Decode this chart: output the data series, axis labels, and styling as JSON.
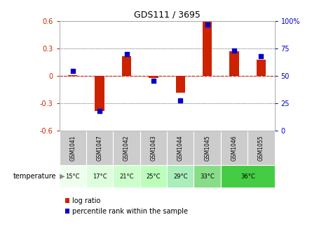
{
  "title": "GDS111 / 3695",
  "samples": [
    "GSM1041",
    "GSM1047",
    "GSM1042",
    "GSM1043",
    "GSM1044",
    "GSM1045",
    "GSM1046",
    "GSM1055"
  ],
  "temperatures": [
    "15°C",
    "17°C",
    "21°C",
    "25°C",
    "29°C",
    "33°C",
    "36°C"
  ],
  "temp_groups": [
    1,
    1,
    2,
    2,
    3,
    3,
    4
  ],
  "temp_spans": [
    1,
    1,
    1,
    1,
    1,
    1,
    2
  ],
  "temp_start_idx": [
    0,
    1,
    2,
    3,
    4,
    5,
    6
  ],
  "log_ratios": [
    0.01,
    -0.38,
    0.22,
    -0.02,
    -0.18,
    0.6,
    0.27,
    0.18
  ],
  "percentile_ranks": [
    55,
    18,
    70,
    46,
    28,
    97,
    73,
    68
  ],
  "ylim_left": [
    -0.6,
    0.6
  ],
  "ylim_right": [
    0,
    100
  ],
  "yticks_left": [
    -0.6,
    -0.3,
    0.0,
    0.3,
    0.6
  ],
  "yticks_right": [
    0,
    25,
    50,
    75,
    100
  ],
  "bar_color": "#cc2200",
  "dot_color": "#0000cc",
  "zero_line_color": "#cc2200",
  "bg_color": "#ffffff",
  "plot_bg": "#ffffff",
  "temp_bg_colors": [
    "#ddffdd",
    "#bbffbb",
    "#aaeebb",
    "#55cc55"
  ],
  "gsm_bg": "#cccccc",
  "legend_bar_label": "log ratio",
  "legend_dot_label": "percentile rank within the sample",
  "temp_label": "temperature"
}
